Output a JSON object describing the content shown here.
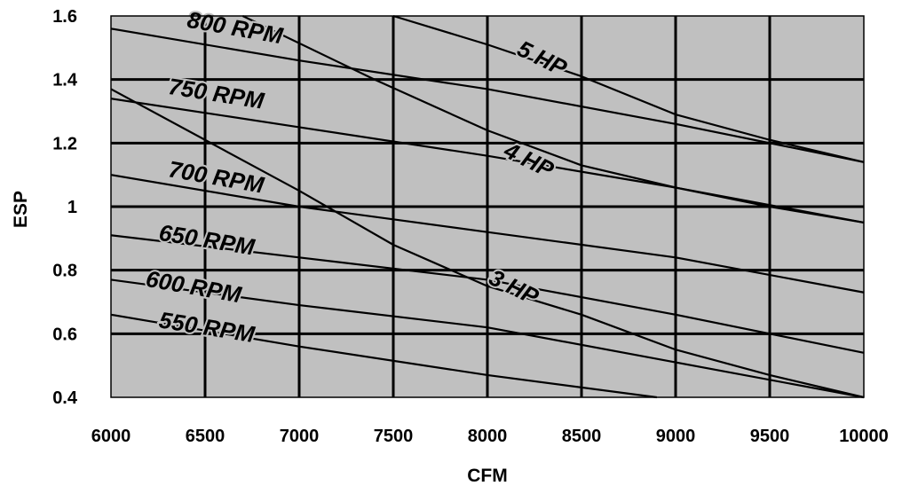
{
  "chart_data": {
    "type": "line",
    "xlabel": "CFM",
    "ylabel": "ESP",
    "xlim": [
      6000,
      10000
    ],
    "ylim": [
      0.4,
      1.6
    ],
    "x_ticks": [
      "6000",
      "6500",
      "7000",
      "7500",
      "8000",
      "8500",
      "9000",
      "9500",
      "10000"
    ],
    "y_ticks": [
      "1.6",
      "1.4",
      "1.2",
      "1",
      "0.8",
      "0.6",
      "0.4"
    ],
    "grid": true,
    "background_color": "#c0c0c0",
    "line_color": "#000000",
    "series": [
      {
        "name": "800 RPM",
        "points": [
          [
            6000,
            1.56
          ],
          [
            7000,
            1.46
          ],
          [
            8000,
            1.37
          ],
          [
            9000,
            1.26
          ],
          [
            10000,
            1.14
          ]
        ]
      },
      {
        "name": "750 RPM",
        "points": [
          [
            6000,
            1.34
          ],
          [
            7000,
            1.25
          ],
          [
            8000,
            1.16
          ],
          [
            9000,
            1.06
          ],
          [
            10000,
            0.95
          ]
        ]
      },
      {
        "name": "700 RPM",
        "points": [
          [
            6000,
            1.1
          ],
          [
            7000,
            1.0
          ],
          [
            8000,
            0.92
          ],
          [
            9000,
            0.84
          ],
          [
            10000,
            0.73
          ]
        ]
      },
      {
        "name": "650 RPM",
        "points": [
          [
            6000,
            0.91
          ],
          [
            7000,
            0.84
          ],
          [
            8000,
            0.77
          ],
          [
            9000,
            0.66
          ],
          [
            10000,
            0.54
          ]
        ]
      },
      {
        "name": "600 RPM",
        "points": [
          [
            6000,
            0.77
          ],
          [
            7000,
            0.69
          ],
          [
            8000,
            0.62
          ],
          [
            9000,
            0.51
          ],
          [
            10000,
            0.4
          ]
        ]
      },
      {
        "name": "550 RPM",
        "points": [
          [
            6000,
            0.66
          ],
          [
            7000,
            0.56
          ],
          [
            8000,
            0.47
          ],
          [
            8900,
            0.4
          ]
        ]
      },
      {
        "name": "5 HP",
        "points": [
          [
            7500,
            1.6
          ],
          [
            8000,
            1.51
          ],
          [
            8500,
            1.41
          ],
          [
            9000,
            1.29
          ],
          [
            9500,
            1.21
          ],
          [
            10000,
            1.14
          ]
        ]
      },
      {
        "name": "4 HP",
        "points": [
          [
            6700,
            1.6
          ],
          [
            7400,
            1.4
          ],
          [
            8000,
            1.24
          ],
          [
            8500,
            1.13
          ],
          [
            9000,
            1.06
          ],
          [
            9500,
            1.0
          ],
          [
            10000,
            0.95
          ]
        ]
      },
      {
        "name": "3 HP",
        "points": [
          [
            6000,
            1.37
          ],
          [
            6500,
            1.21
          ],
          [
            7000,
            1.05
          ],
          [
            7500,
            0.88
          ],
          [
            8000,
            0.75
          ],
          [
            8500,
            0.66
          ],
          [
            9000,
            0.55
          ],
          [
            9500,
            0.47
          ],
          [
            10000,
            0.4
          ]
        ]
      }
    ],
    "labels": [
      {
        "text": "800 RPM",
        "x": 6400,
        "y": 1.565,
        "rotate": 10
      },
      {
        "text": "750 RPM",
        "x": 6300,
        "y": 1.355,
        "rotate": 9
      },
      {
        "text": "700 RPM",
        "x": 6300,
        "y": 1.095,
        "rotate": 10
      },
      {
        "text": "650 RPM",
        "x": 6250,
        "y": 0.895,
        "rotate": 9
      },
      {
        "text": "600 RPM",
        "x": 6180,
        "y": 0.75,
        "rotate": 10
      },
      {
        "text": "550 RPM",
        "x": 6250,
        "y": 0.62,
        "rotate": 9
      },
      {
        "text": "5 HP",
        "x": 8150,
        "y": 1.48,
        "rotate": 26
      },
      {
        "text": "4 HP",
        "x": 8080,
        "y": 1.16,
        "rotate": 26
      },
      {
        "text": "3 HP",
        "x": 8000,
        "y": 0.76,
        "rotate": 26
      }
    ]
  }
}
